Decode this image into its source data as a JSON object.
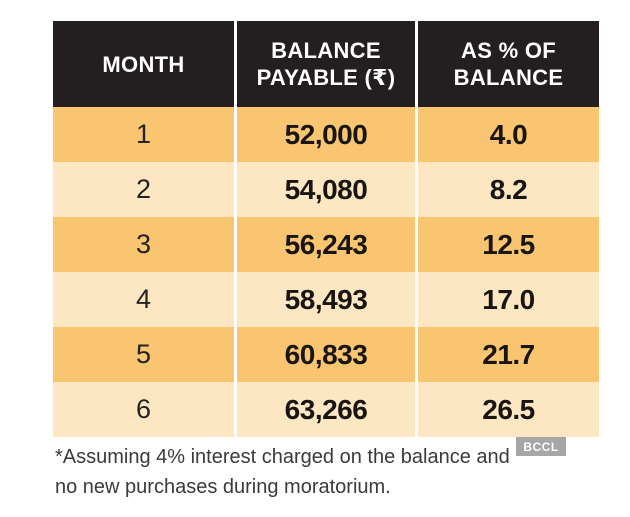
{
  "colors": {
    "header_bg": "#231f20",
    "header_text": "#ffffff",
    "row_orange": "#f9c571",
    "row_cream": "#fde7c2",
    "cell_text": "#181512",
    "footnote_text": "#3a3a3a",
    "watermark_bg": "#969696"
  },
  "table": {
    "columns": [
      {
        "label": "MONTH"
      },
      {
        "label": "BALANCE\nPAYABLE (₹)"
      },
      {
        "label": "AS % OF\nBALANCE"
      }
    ],
    "rows": [
      {
        "month": "1",
        "balance": "52,000",
        "pct": "4.0"
      },
      {
        "month": "2",
        "balance": "54,080",
        "pct": "8.2"
      },
      {
        "month": "3",
        "balance": "56,243",
        "pct": "12.5"
      },
      {
        "month": "4",
        "balance": "58,493",
        "pct": "17.0"
      },
      {
        "month": "5",
        "balance": "60,833",
        "pct": "21.7"
      },
      {
        "month": "6",
        "balance": "63,266",
        "pct": "26.5"
      }
    ]
  },
  "footnote": "*Assuming 4% interest charged on the balance and\nno new purchases during moratorium.",
  "watermark": "BCCL",
  "chart_data": {
    "type": "table",
    "columns": [
      "MONTH",
      "BALANCE PAYABLE (₹)",
      "AS % OF BALANCE"
    ],
    "rows": [
      [
        1,
        52000,
        4.0
      ],
      [
        2,
        54080,
        8.2
      ],
      [
        3,
        56243,
        12.5
      ],
      [
        4,
        58493,
        17.0
      ],
      [
        5,
        60833,
        21.7
      ],
      [
        6,
        63266,
        26.5
      ]
    ],
    "footnote": "*Assuming 4% interest charged on the balance and no new purchases during moratorium."
  }
}
